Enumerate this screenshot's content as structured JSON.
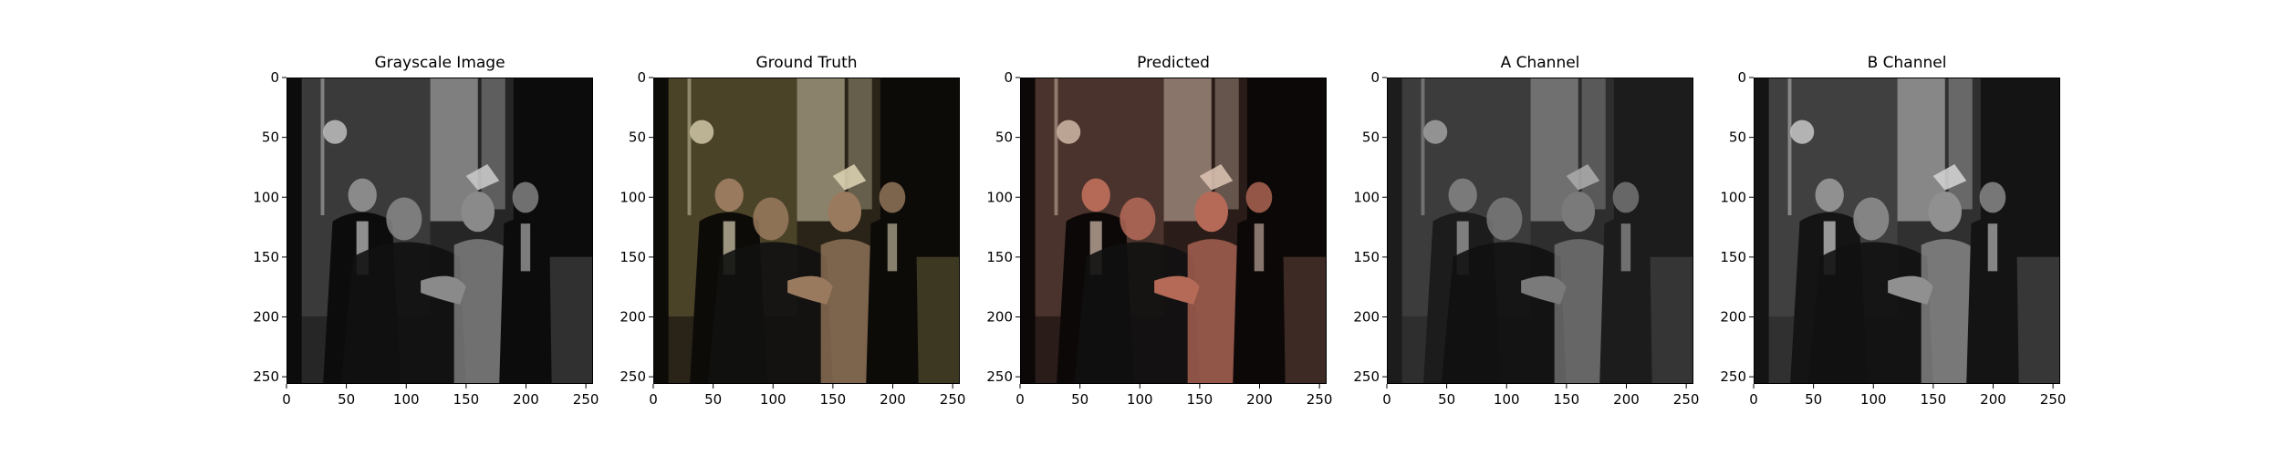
{
  "chart_data": [
    {
      "type": "image",
      "title": "Grayscale Image",
      "xlim": [
        0,
        256
      ],
      "ylim": [
        256,
        0
      ],
      "xticks": [
        0,
        50,
        100,
        150,
        200,
        250
      ],
      "yticks": [
        0,
        50,
        100,
        150,
        200,
        250
      ],
      "colormap": "grayscale",
      "palette": {
        "base": "#262626",
        "wall": "#3a3a3a",
        "bright": "#c8c8c8",
        "dark": "#0c0c0c",
        "skin": "#8a8a8a"
      }
    },
    {
      "type": "image",
      "title": "Ground Truth",
      "xlim": [
        0,
        256
      ],
      "ylim": [
        256,
        0
      ],
      "xticks": [
        0,
        50,
        100,
        150,
        200,
        250
      ],
      "yticks": [
        0,
        50,
        100,
        150,
        200,
        250
      ],
      "colormap": "rgb",
      "palette": {
        "base": "#2a2418",
        "wall": "#4a4328",
        "bright": "#d8cfb0",
        "dark": "#0d0b08",
        "skin": "#9a7a5e"
      }
    },
    {
      "type": "image",
      "title": "Predicted",
      "xlim": [
        0,
        256
      ],
      "ylim": [
        256,
        0
      ],
      "xticks": [
        0,
        50,
        100,
        150,
        200,
        250
      ],
      "yticks": [
        0,
        50,
        100,
        150,
        200,
        250
      ],
      "colormap": "rgb",
      "palette": {
        "base": "#2a1c18",
        "wall": "#4a332c",
        "bright": "#d8c0b0",
        "dark": "#0d0808",
        "skin": "#b56a58"
      }
    },
    {
      "type": "image",
      "title": "A Channel",
      "xlim": [
        0,
        256
      ],
      "ylim": [
        256,
        0
      ],
      "xticks": [
        0,
        50,
        100,
        150,
        200,
        250
      ],
      "yticks": [
        0,
        50,
        100,
        150,
        200,
        250
      ],
      "colormap": "grayscale",
      "palette": {
        "base": "#2e2e2e",
        "wall": "#3c3c3c",
        "bright": "#a8a8a8",
        "dark": "#1c1c1c",
        "skin": "#7a7a7a"
      }
    },
    {
      "type": "image",
      "title": "B Channel",
      "xlim": [
        0,
        256
      ],
      "ylim": [
        256,
        0
      ],
      "xticks": [
        0,
        50,
        100,
        150,
        200,
        250
      ],
      "yticks": [
        0,
        50,
        100,
        150,
        200,
        250
      ],
      "colormap": "grayscale",
      "palette": {
        "base": "#303030",
        "wall": "#404040",
        "bright": "#d0d0d0",
        "dark": "#141414",
        "skin": "#909090"
      }
    }
  ]
}
